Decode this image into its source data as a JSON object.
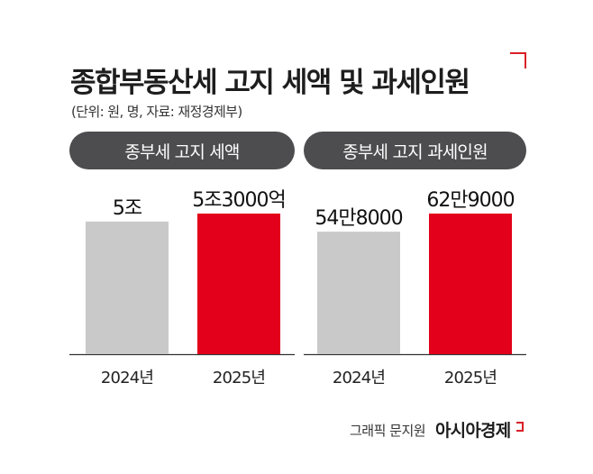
{
  "header": {
    "title": "종합부동산세 고지 세액 및 과세인원",
    "subtitle": "(단위: 원, 명, 자료: 재정경제부)"
  },
  "chart_data": [
    {
      "type": "bar",
      "title": "종부세 고지 세액",
      "categories": [
        "2024년",
        "2025년"
      ],
      "values": [
        50000,
        53000
      ],
      "value_unit": "억 원",
      "value_labels": [
        "5조",
        "5조3000억"
      ],
      "colors": [
        "#c9c9c9",
        "#e2001a"
      ]
    },
    {
      "type": "bar",
      "title": "종부세 고지 과세인원",
      "categories": [
        "2024년",
        "2025년"
      ],
      "values": [
        548000,
        629000
      ],
      "value_unit": "명",
      "value_labels": [
        "54만8000",
        "62만9000"
      ],
      "colors": [
        "#c9c9c9",
        "#e2001a"
      ]
    }
  ],
  "footer": {
    "source": "그래픽 문지원",
    "brand": "아시아경제"
  },
  "colors": {
    "accent": "#d91f26",
    "pill_bg": "#4d4d4f",
    "bar_prev": "#c9c9c9",
    "bar_current": "#e2001a"
  }
}
